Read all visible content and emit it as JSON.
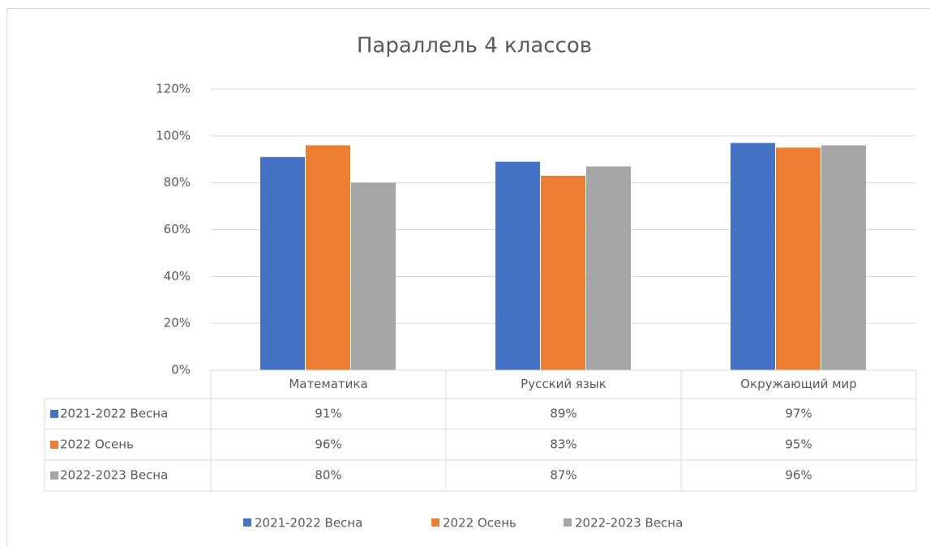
{
  "chart_data": {
    "type": "bar",
    "title": "Параллель 4 классов",
    "categories": [
      "Математика",
      "Русский язык",
      "Окружающий мир"
    ],
    "series": [
      {
        "name": "2021-2022 Весна",
        "color": "#4472c4",
        "values": [
          91,
          89,
          97
        ],
        "value_labels": [
          "91%",
          "89%",
          "97%"
        ]
      },
      {
        "name": "2022 Осень",
        "color": "#ed7d31",
        "values": [
          96,
          83,
          95
        ],
        "value_labels": [
          "96%",
          "83%",
          "95%"
        ]
      },
      {
        "name": "2022-2023 Весна",
        "color": "#a5a5a5",
        "values": [
          80,
          87,
          96
        ],
        "value_labels": [
          "80%",
          "87%",
          "96%"
        ]
      }
    ],
    "ylim": [
      0,
      120
    ],
    "yticks": [
      {
        "value": 0,
        "label": "0%"
      },
      {
        "value": 20,
        "label": "20%"
      },
      {
        "value": 40,
        "label": "40%"
      },
      {
        "value": 60,
        "label": "60%"
      },
      {
        "value": 80,
        "label": "80%"
      },
      {
        "value": 100,
        "label": "100%"
      },
      {
        "value": 120,
        "label": "120%"
      }
    ],
    "grid": true,
    "legend": "bottom",
    "data_table": true
  }
}
